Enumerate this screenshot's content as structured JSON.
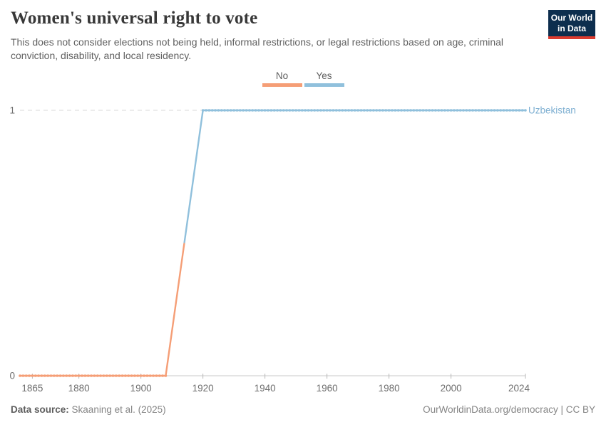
{
  "header": {
    "title": "Women's universal right to vote",
    "subtitle": "This does not consider elections not being held, informal restrictions, or legal restrictions based on age, criminal conviction, disability, and local residency.",
    "logo_line1": "Our World",
    "logo_line2": "in Data",
    "logo_bg_color": "#0d2e4e",
    "logo_accent_color": "#dc3b2f"
  },
  "legend": {
    "items": [
      {
        "label": "No",
        "color": "#F59E76"
      },
      {
        "label": "Yes",
        "color": "#90C0DC"
      }
    ]
  },
  "chart_data": {
    "type": "line",
    "entity_label": "Uzbekistan",
    "entity_label_color": "#7FB0D2",
    "x_range": [
      1861,
      2024
    ],
    "y_range": [
      0,
      1
    ],
    "x_ticks": [
      1865,
      1880,
      1900,
      1920,
      1940,
      1960,
      1980,
      2000,
      2024
    ],
    "y_ticks": [
      {
        "value": 1,
        "label": "1"
      },
      {
        "value": 0,
        "label": "0"
      }
    ],
    "series": [
      {
        "name": "No",
        "color": "#F59E76",
        "value": 0,
        "start_year": 1861,
        "end_year": 1908
      },
      {
        "name": "Yes",
        "color": "#90C0DC",
        "value": 1,
        "start_year": 1920,
        "end_year": 2024
      }
    ],
    "transition": {
      "from_year": 1908,
      "from_value": 0,
      "to_year": 1920,
      "to_value": 1
    },
    "grid": "dashed-at-1",
    "legend_position": "top-center"
  },
  "footer": {
    "source_label": "Data source:",
    "source_value": "Skaaning et al. (2025)",
    "right_text": "OurWorldinData.org/democracy | CC BY"
  }
}
